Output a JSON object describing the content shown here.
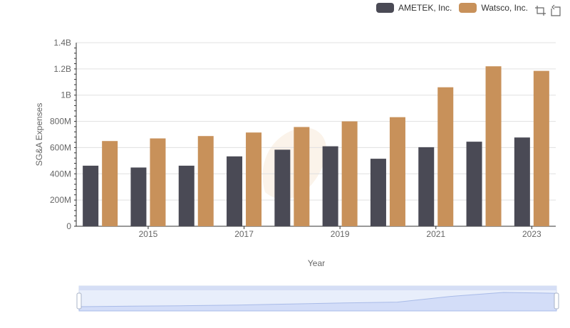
{
  "chart_data": {
    "type": "bar",
    "xlabel": "Year",
    "ylabel": "SG&A Expenses",
    "ylim": [
      0,
      1400000000
    ],
    "yticks": [
      "0",
      "200M",
      "400M",
      "600M",
      "800M",
      "1B",
      "1.2B",
      "1.4B"
    ],
    "x": [
      2014,
      2015,
      2016,
      2017,
      2018,
      2019,
      2020,
      2021,
      2022,
      2023
    ],
    "xtick_labels": [
      "2015",
      "2017",
      "2019",
      "2021",
      "2023"
    ],
    "series": [
      {
        "name": "AMETEK, Inc.",
        "color": "#4a4a55",
        "values": [
          462000000,
          448000000,
          462000000,
          533000000,
          584000000,
          610000000,
          515000000,
          603000000,
          645000000,
          677000000
        ]
      },
      {
        "name": "Watsco, Inc.",
        "color": "#c8915a",
        "values": [
          650000000,
          670000000,
          688000000,
          715000000,
          757000000,
          800000000,
          832000000,
          1060000000,
          1220000000,
          1185000000
        ]
      }
    ],
    "grid": true,
    "legend_position": "top-right"
  },
  "toolbox": {
    "icons": [
      "zoom-icon",
      "restore-icon"
    ]
  }
}
